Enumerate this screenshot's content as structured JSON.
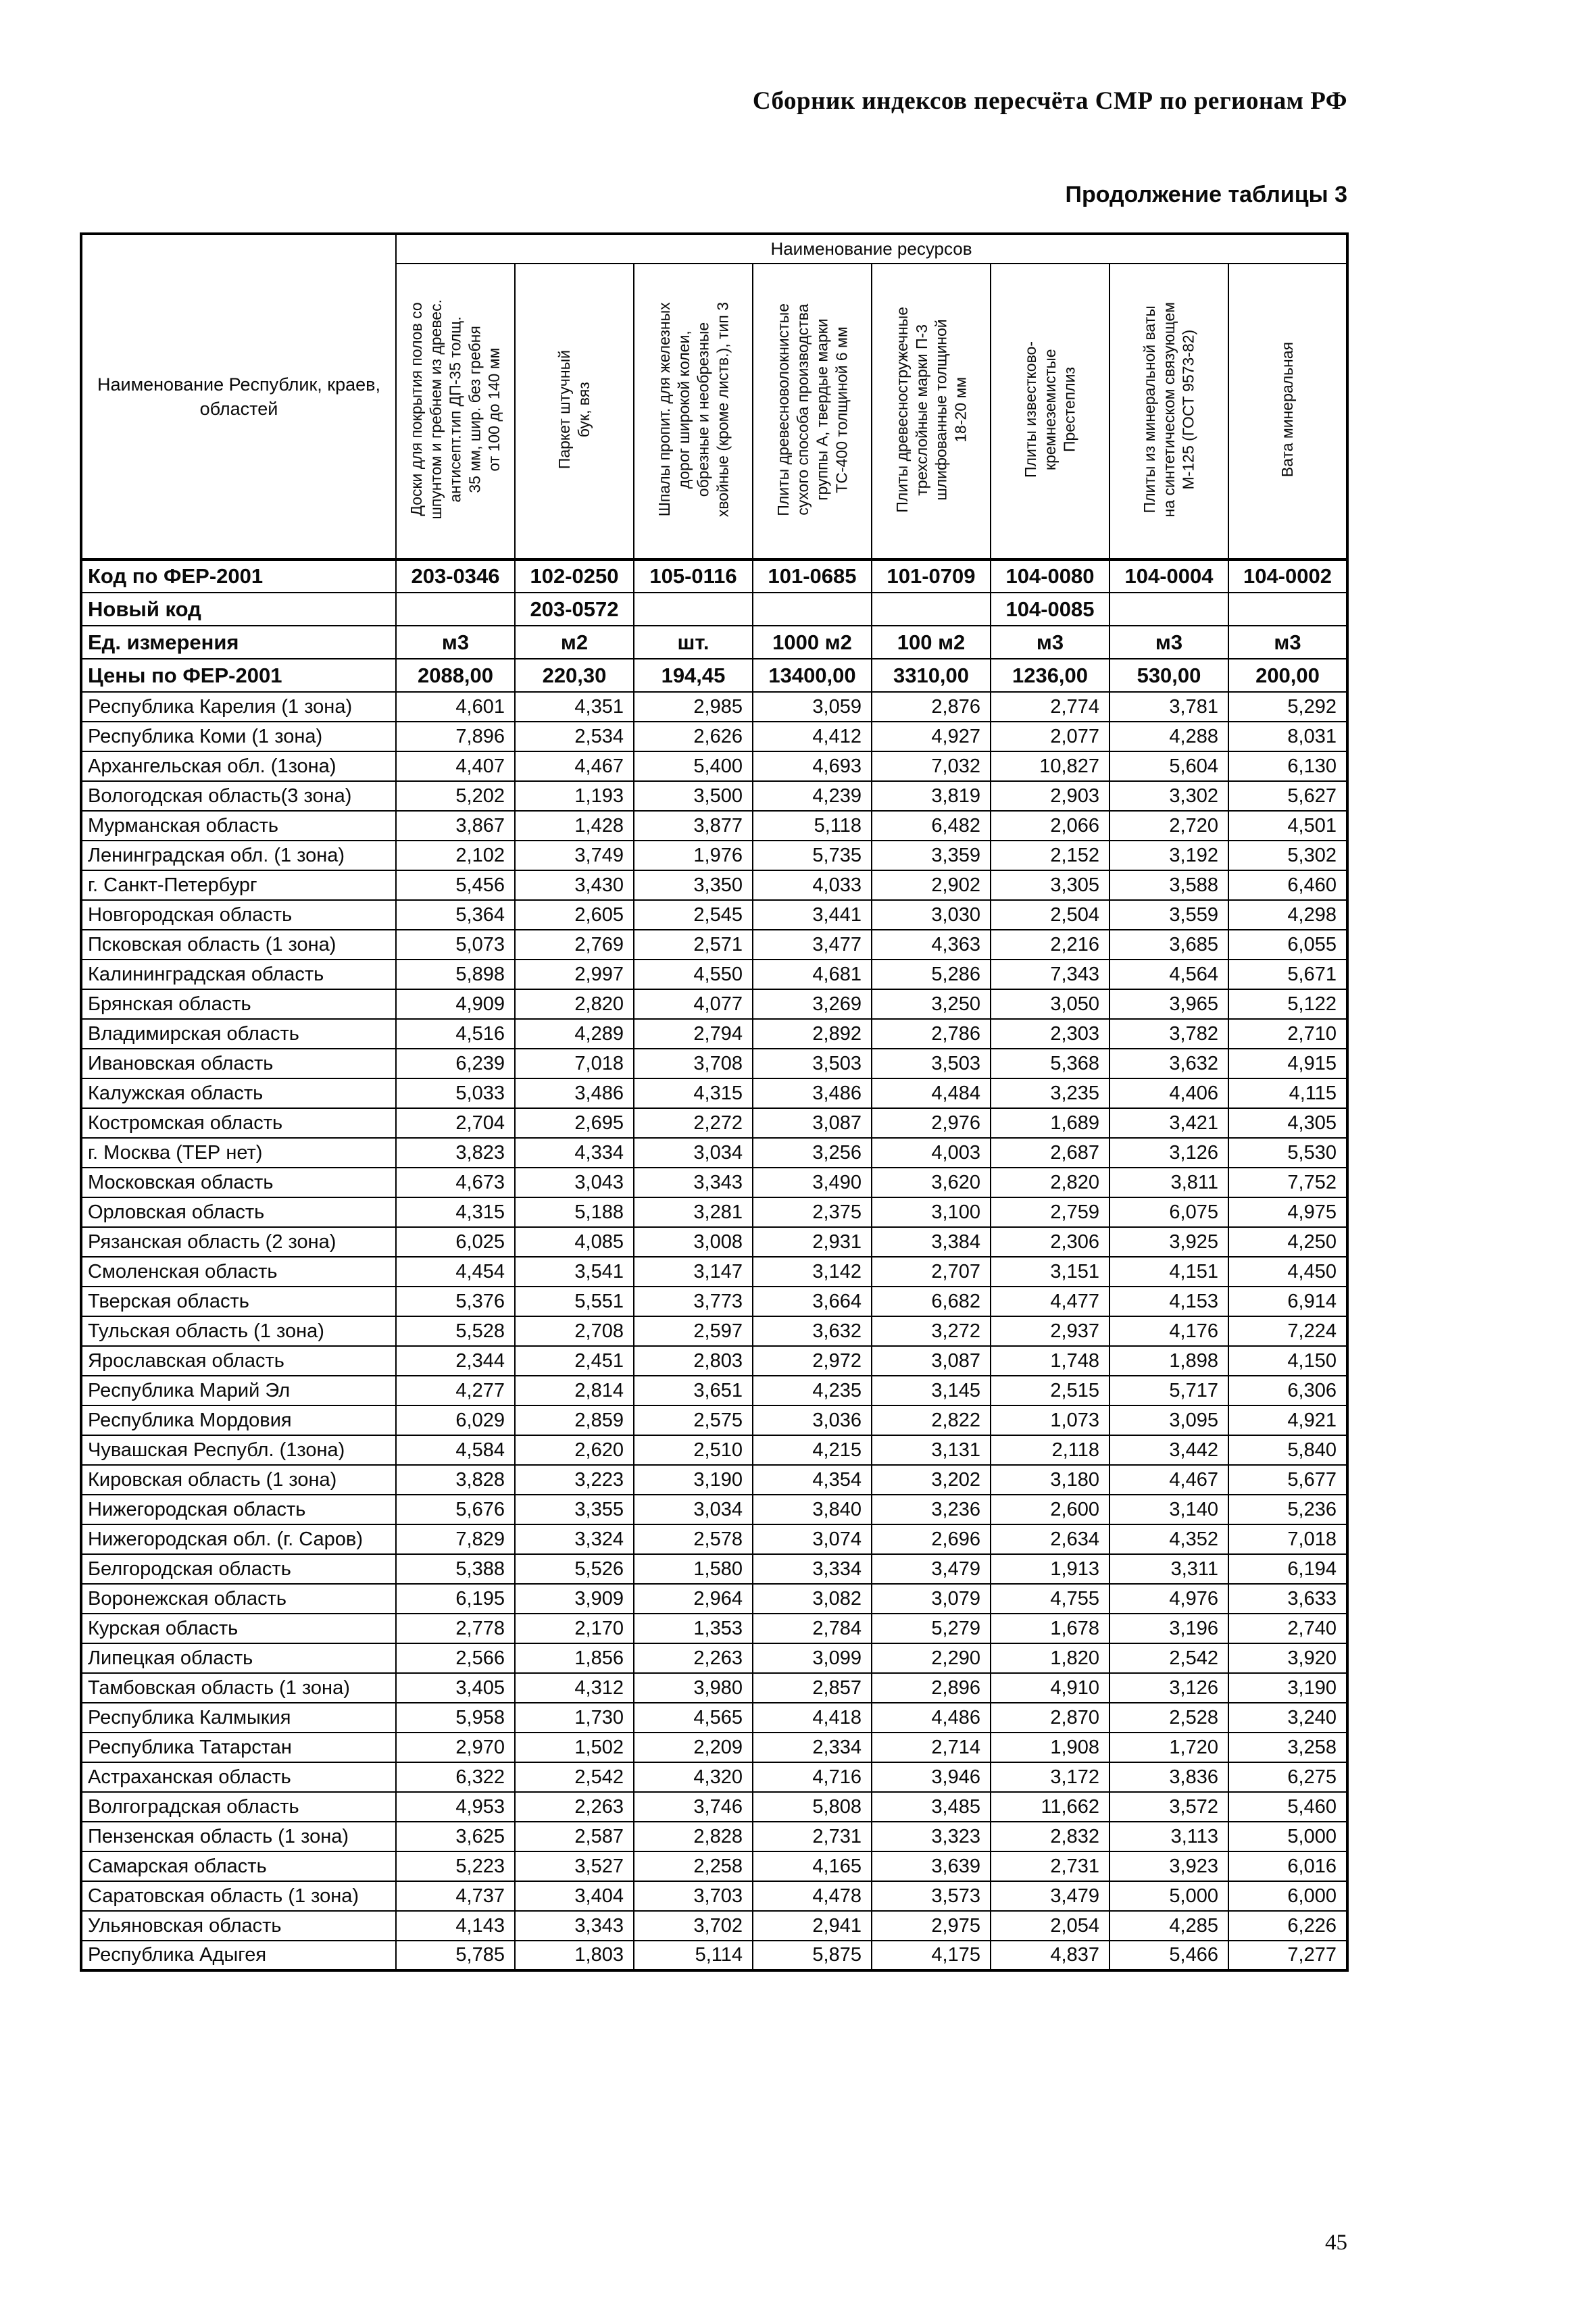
{
  "page": {
    "header_title": "Сборник индексов пересчёта СМР  по регионам РФ",
    "table_caption": "Продолжение таблицы 3",
    "page_number": "45"
  },
  "table": {
    "corner_header": "Наименование Республик, краев,\nобластей",
    "resources_header": "Наименование ресурсов",
    "columns": [
      "Доски для  покрытия полов со\nшпунтом и гребнем  из древес.\nантисепт.тип  ДП-35 толщ.\n35 мм, шир. без гребня\nот 100 до 140 мм",
      "Паркет штучный\nбук, вяз",
      "Шпалы пропит. для железных\nдорог широкой колеи,\nобрезные и необрезные\nхвойные (кроме листв.), тип 3",
      "Плиты  древесноволокнистые\nсухого способа производства\nгруппы А, твердые марки\nТС-400 толщиной 6 мм",
      "Плиты древесностружечные\nтрехслойные марки П-3\nшлифованные  толщиной\n18-20 мм",
      "Плиты известково-\nкремнеземистые\nПрестеплиз",
      "Плиты из минеральной  ваты\nна синтетическом связующем\nМ-125 (ГОСТ 9573-82)",
      "Вата минеральная"
    ],
    "meta_rows": [
      {
        "label": "Код по ФЕР-2001",
        "values": [
          "203-0346",
          "102-0250",
          "105-0116",
          "101-0685",
          "101-0709",
          "104-0080",
          "104-0004",
          "104-0002"
        ]
      },
      {
        "label": "Новый код",
        "values": [
          "",
          "203-0572",
          "",
          "",
          "",
          "104-0085",
          "",
          ""
        ]
      },
      {
        "label": "Ед. измерения",
        "values": [
          "м3",
          "м2",
          "шт.",
          "1000 м2",
          "100 м2",
          "м3",
          "м3",
          "м3"
        ]
      },
      {
        "label": "Цены по ФЕР-2001",
        "values": [
          "2088,00",
          "220,30",
          "194,45",
          "13400,00",
          "3310,00",
          "1236,00",
          "530,00",
          "200,00"
        ]
      }
    ],
    "rows": [
      {
        "region": "Республика Карелия (1 зона)",
        "values": [
          "4,601",
          "4,351",
          "2,985",
          "3,059",
          "2,876",
          "2,774",
          "3,781",
          "5,292"
        ]
      },
      {
        "region": "Республика Коми (1 зона)",
        "values": [
          "7,896",
          "2,534",
          "2,626",
          "4,412",
          "4,927",
          "2,077",
          "4,288",
          "8,031"
        ]
      },
      {
        "region": "Архангельская обл. (1зона)",
        "values": [
          "4,407",
          "4,467",
          "5,400",
          "4,693",
          "7,032",
          "10,827",
          "5,604",
          "6,130"
        ]
      },
      {
        "region": "Вологодская область(3 зона)",
        "values": [
          "5,202",
          "1,193",
          "3,500",
          "4,239",
          "3,819",
          "2,903",
          "3,302",
          "5,627"
        ]
      },
      {
        "region": "Мурманская область",
        "values": [
          "3,867",
          "1,428",
          "3,877",
          "5,118",
          "6,482",
          "2,066",
          "2,720",
          "4,501"
        ]
      },
      {
        "region": "Ленинградская обл. (1 зона)",
        "values": [
          "2,102",
          "3,749",
          "1,976",
          "5,735",
          "3,359",
          "2,152",
          "3,192",
          "5,302"
        ]
      },
      {
        "region": "г. Санкт-Петербург",
        "values": [
          "5,456",
          "3,430",
          "3,350",
          "4,033",
          "2,902",
          "3,305",
          "3,588",
          "6,460"
        ]
      },
      {
        "region": "Новгородская область",
        "values": [
          "5,364",
          "2,605",
          "2,545",
          "3,441",
          "3,030",
          "2,504",
          "3,559",
          "4,298"
        ]
      },
      {
        "region": "Псковская область (1 зона)",
        "values": [
          "5,073",
          "2,769",
          "2,571",
          "3,477",
          "4,363",
          "2,216",
          "3,685",
          "6,055"
        ]
      },
      {
        "region": "Калининградская область",
        "values": [
          "5,898",
          "2,997",
          "4,550",
          "4,681",
          "5,286",
          "7,343",
          "4,564",
          "5,671"
        ]
      },
      {
        "region": "Брянская область",
        "values": [
          "4,909",
          "2,820",
          "4,077",
          "3,269",
          "3,250",
          "3,050",
          "3,965",
          "5,122"
        ]
      },
      {
        "region": "Владимирская область",
        "values": [
          "4,516",
          "4,289",
          "2,794",
          "2,892",
          "2,786",
          "2,303",
          "3,782",
          "2,710"
        ]
      },
      {
        "region": "Ивановская область",
        "values": [
          "6,239",
          "7,018",
          "3,708",
          "3,503",
          "3,503",
          "5,368",
          "3,632",
          "4,915"
        ]
      },
      {
        "region": "Калужская область",
        "values": [
          "5,033",
          "3,486",
          "4,315",
          "3,486",
          "4,484",
          "3,235",
          "4,406",
          "4,115"
        ]
      },
      {
        "region": "Костромская область",
        "values": [
          "2,704",
          "2,695",
          "2,272",
          "3,087",
          "2,976",
          "1,689",
          "3,421",
          "4,305"
        ]
      },
      {
        "region": "г. Москва (ТЕР нет)",
        "values": [
          "3,823",
          "4,334",
          "3,034",
          "3,256",
          "4,003",
          "2,687",
          "3,126",
          "5,530"
        ]
      },
      {
        "region": "Московская  область",
        "values": [
          "4,673",
          "3,043",
          "3,343",
          "3,490",
          "3,620",
          "2,820",
          "3,811",
          "7,752"
        ]
      },
      {
        "region": "Орловская область",
        "values": [
          "4,315",
          "5,188",
          "3,281",
          "2,375",
          "3,100",
          "2,759",
          "6,075",
          "4,975"
        ]
      },
      {
        "region": "Рязанская область (2 зона)",
        "values": [
          "6,025",
          "4,085",
          "3,008",
          "2,931",
          "3,384",
          "2,306",
          "3,925",
          "4,250"
        ]
      },
      {
        "region": "Смоленская область",
        "values": [
          "4,454",
          "3,541",
          "3,147",
          "3,142",
          "2,707",
          "3,151",
          "4,151",
          "4,450"
        ]
      },
      {
        "region": "Тверская область",
        "values": [
          "5,376",
          "5,551",
          "3,773",
          "3,664",
          "6,682",
          "4,477",
          "4,153",
          "6,914"
        ]
      },
      {
        "region": "Тульская область (1 зона)",
        "values": [
          "5,528",
          "2,708",
          "2,597",
          "3,632",
          "3,272",
          "2,937",
          "4,176",
          "7,224"
        ]
      },
      {
        "region": "Ярославская область",
        "values": [
          "2,344",
          "2,451",
          "2,803",
          "2,972",
          "3,087",
          "1,748",
          "1,898",
          "4,150"
        ]
      },
      {
        "region": "Республика Марий Эл",
        "values": [
          "4,277",
          "2,814",
          "3,651",
          "4,235",
          "3,145",
          "2,515",
          "5,717",
          "6,306"
        ]
      },
      {
        "region": "Республика Мордовия",
        "values": [
          "6,029",
          "2,859",
          "2,575",
          "3,036",
          "2,822",
          "1,073",
          "3,095",
          "4,921"
        ]
      },
      {
        "region": "Чувашская Республ. (1зона)",
        "values": [
          "4,584",
          "2,620",
          "2,510",
          "4,215",
          "3,131",
          "2,118",
          "3,442",
          "5,840"
        ]
      },
      {
        "region": "Кировская область (1 зона)",
        "values": [
          "3,828",
          "3,223",
          "3,190",
          "4,354",
          "3,202",
          "3,180",
          "4,467",
          "5,677"
        ]
      },
      {
        "region": "Нижегородская область",
        "values": [
          "5,676",
          "3,355",
          "3,034",
          "3,840",
          "3,236",
          "2,600",
          "3,140",
          "5,236"
        ]
      },
      {
        "region": "Нижегородская обл. (г. Саров)",
        "values": [
          "7,829",
          "3,324",
          "2,578",
          "3,074",
          "2,696",
          "2,634",
          "4,352",
          "7,018"
        ]
      },
      {
        "region": "Белгородская область",
        "values": [
          "5,388",
          "5,526",
          "1,580",
          "3,334",
          "3,479",
          "1,913",
          "3,311",
          "6,194"
        ]
      },
      {
        "region": "Воронежская область",
        "values": [
          "6,195",
          "3,909",
          "2,964",
          "3,082",
          "3,079",
          "4,755",
          "4,976",
          "3,633"
        ]
      },
      {
        "region": "Курская область",
        "values": [
          "2,778",
          "2,170",
          "1,353",
          "2,784",
          "5,279",
          "1,678",
          "3,196",
          "2,740"
        ]
      },
      {
        "region": "Липецкая область",
        "values": [
          "2,566",
          "1,856",
          "2,263",
          "3,099",
          "2,290",
          "1,820",
          "2,542",
          "3,920"
        ]
      },
      {
        "region": "Тамбовская область (1 зона)",
        "values": [
          "3,405",
          "4,312",
          "3,980",
          "2,857",
          "2,896",
          "4,910",
          "3,126",
          "3,190"
        ]
      },
      {
        "region": "Республика Калмыкия",
        "values": [
          "5,958",
          "1,730",
          "4,565",
          "4,418",
          "4,486",
          "2,870",
          "2,528",
          "3,240"
        ]
      },
      {
        "region": "Республика Татарстан",
        "values": [
          "2,970",
          "1,502",
          "2,209",
          "2,334",
          "2,714",
          "1,908",
          "1,720",
          "3,258"
        ]
      },
      {
        "region": "Астраханская область",
        "values": [
          "6,322",
          "2,542",
          "4,320",
          "4,716",
          "3,946",
          "3,172",
          "3,836",
          "6,275"
        ]
      },
      {
        "region": "Волгоградская область",
        "values": [
          "4,953",
          "2,263",
          "3,746",
          "5,808",
          "3,485",
          "11,662",
          "3,572",
          "5,460"
        ]
      },
      {
        "region": "Пензенская область (1 зона)",
        "values": [
          "3,625",
          "2,587",
          "2,828",
          "2,731",
          "3,323",
          "2,832",
          "3,113",
          "5,000"
        ]
      },
      {
        "region": "Самарская область",
        "values": [
          "5,223",
          "3,527",
          "2,258",
          "4,165",
          "3,639",
          "2,731",
          "3,923",
          "6,016"
        ]
      },
      {
        "region": "Саратовская область (1 зона)",
        "values": [
          "4,737",
          "3,404",
          "3,703",
          "4,478",
          "3,573",
          "3,479",
          "5,000",
          "6,000"
        ]
      },
      {
        "region": "Ульяновская область",
        "values": [
          "4,143",
          "3,343",
          "3,702",
          "2,941",
          "2,975",
          "2,054",
          "4,285",
          "6,226"
        ]
      },
      {
        "region": "Республика Адыгея",
        "values": [
          "5,785",
          "1,803",
          "5,114",
          "5,875",
          "4,175",
          "4,837",
          "5,466",
          "7,277"
        ]
      }
    ]
  }
}
